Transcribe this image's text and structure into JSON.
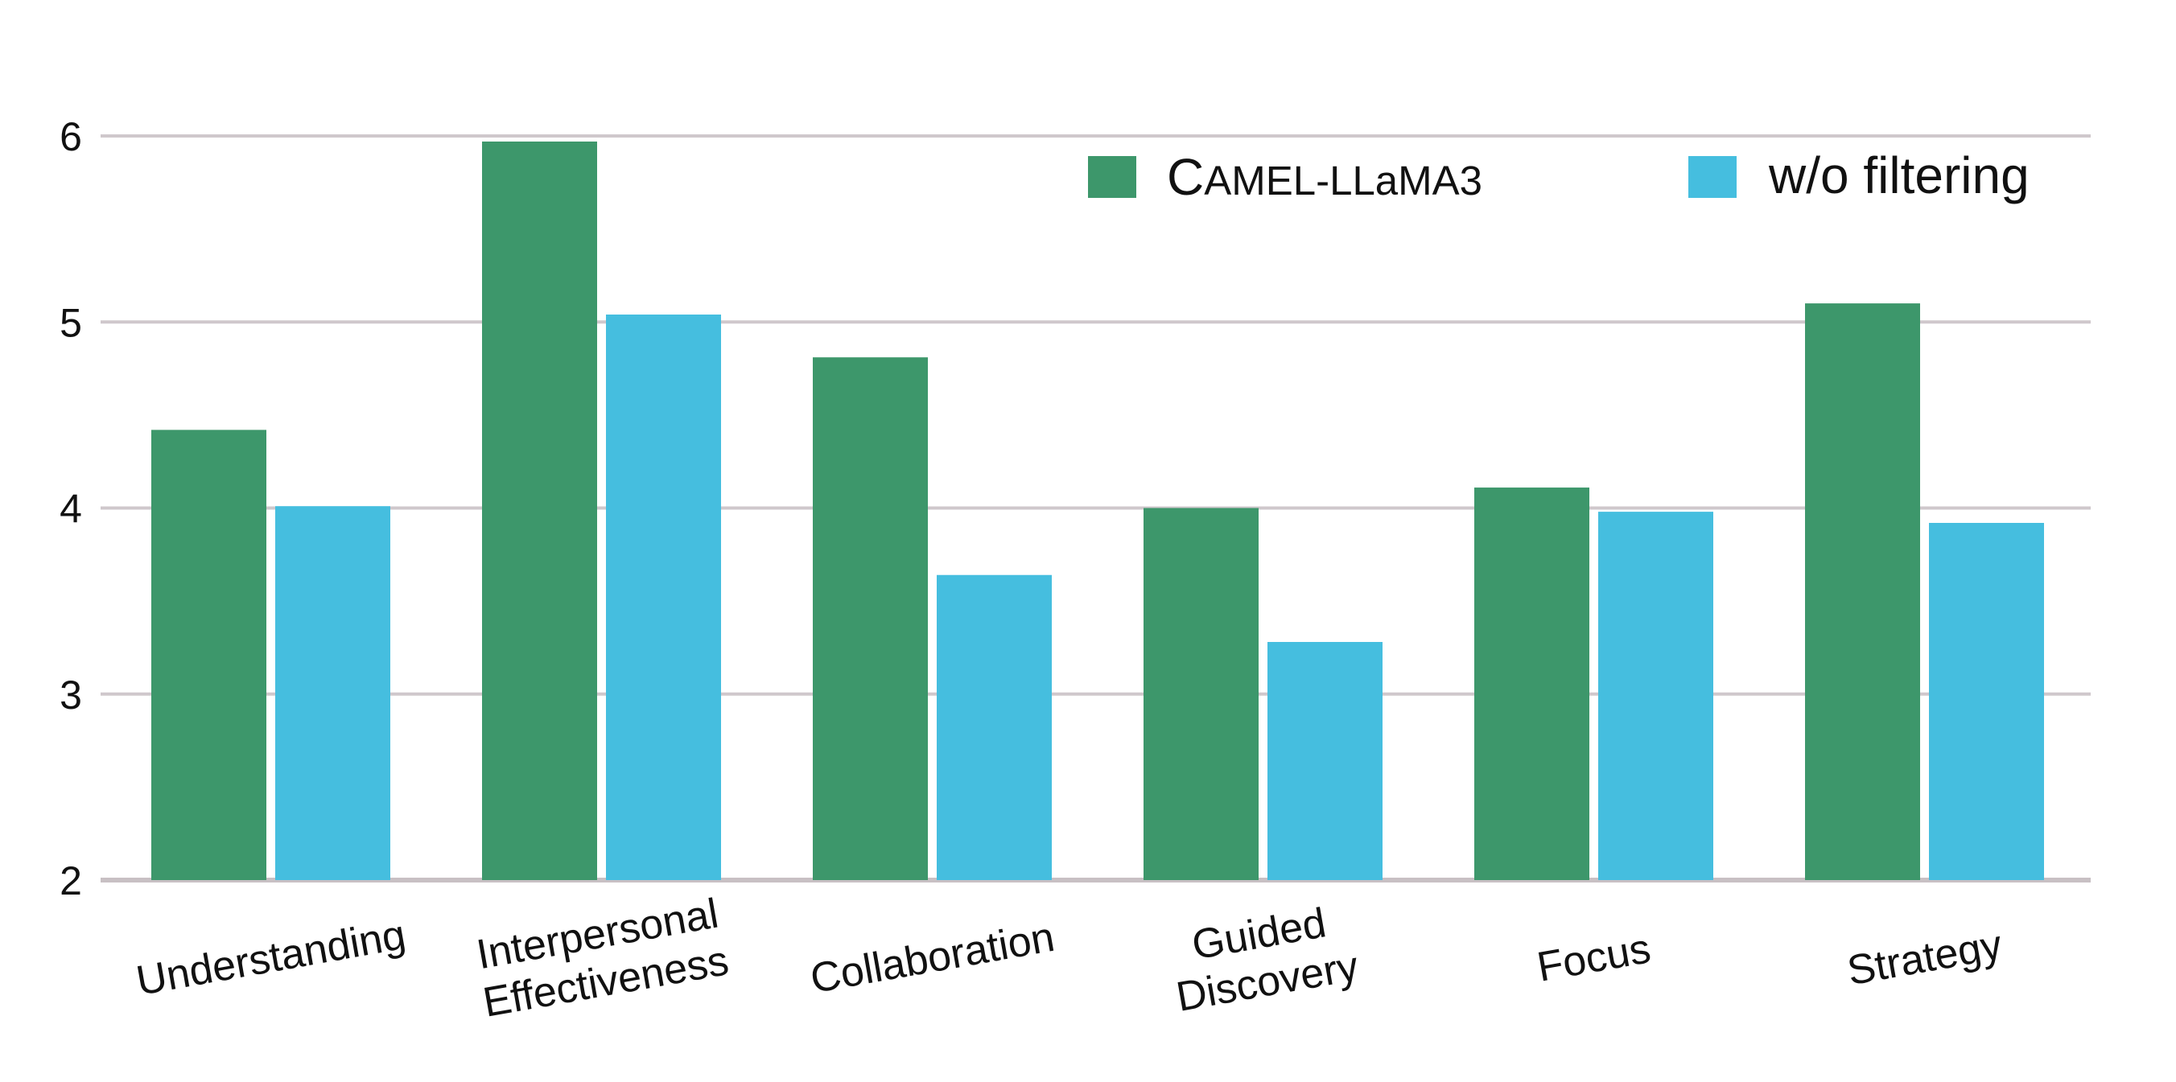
{
  "chart_data": {
    "type": "bar",
    "categories": [
      [
        "Understanding"
      ],
      [
        "Interpersonal",
        "Effectiveness"
      ],
      [
        "Collaboration"
      ],
      [
        "Guided",
        "Discovery"
      ],
      [
        "Focus"
      ],
      [
        "Strategy"
      ]
    ],
    "series": [
      {
        "name_parts": {
          "initial": "C",
          "rest": "AMEL-LLaMA3"
        },
        "color": "#3d976b",
        "values": [
          4.42,
          5.97,
          4.81,
          4.0,
          4.11,
          5.1
        ]
      },
      {
        "name": "w/o filtering",
        "color": "#45bedf",
        "values": [
          4.01,
          5.04,
          3.64,
          3.28,
          3.98,
          3.92
        ]
      }
    ],
    "yticks": [
      2,
      3,
      4,
      5,
      6
    ],
    "ylim": [
      2,
      6
    ],
    "grid": true,
    "legend_position": "top-right",
    "title": "",
    "xlabel": "",
    "ylabel": ""
  }
}
